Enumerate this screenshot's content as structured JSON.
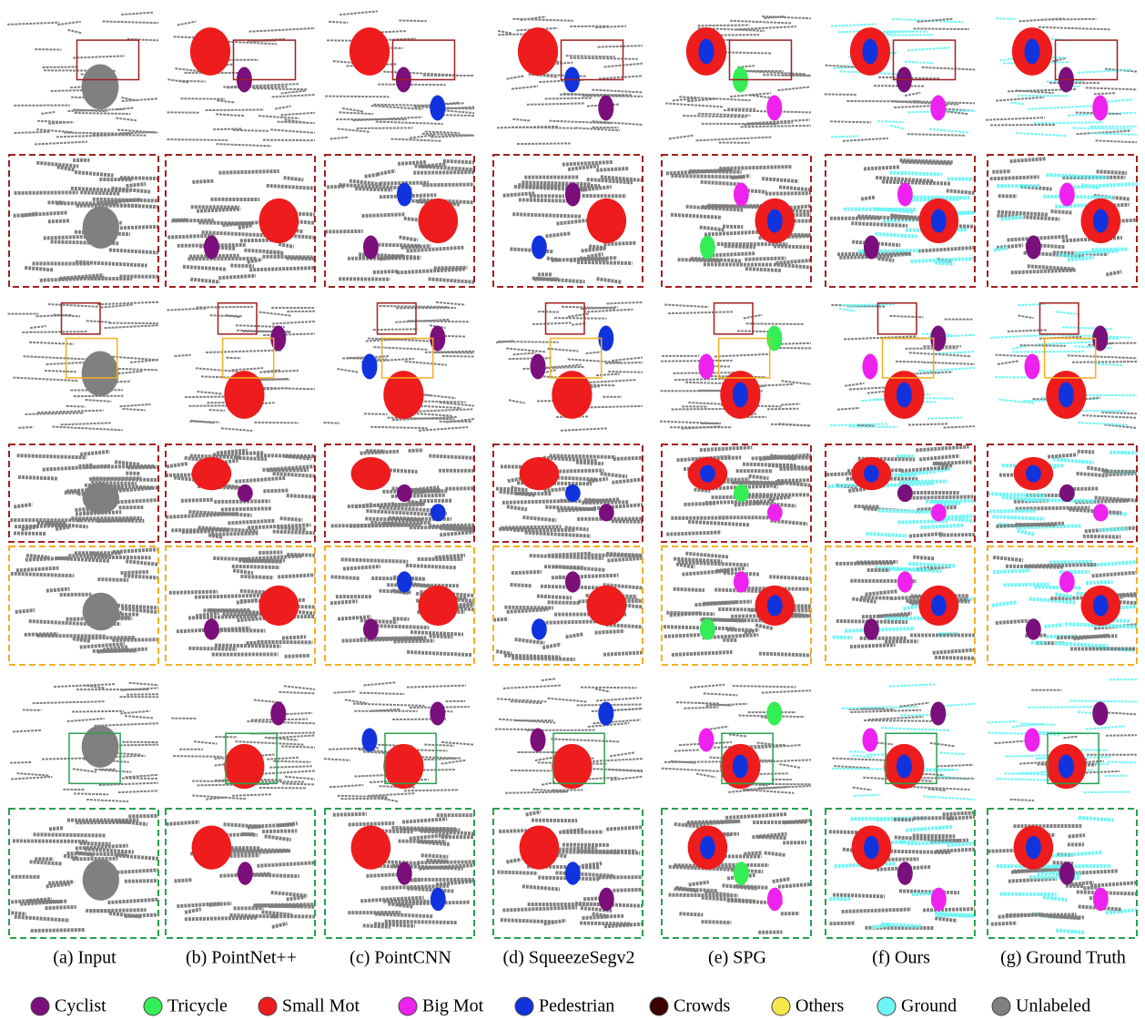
{
  "figure": {
    "captions": [
      "(a) Input",
      "(b) PointNet++",
      "(c) PointCNN",
      "(d) SqueezeSegv2",
      "(e) SPG",
      "(f) Ours",
      "(g) Ground Truth"
    ],
    "legend": [
      {
        "label": "Cyclist",
        "color": "#7b0f7b"
      },
      {
        "label": "Tricycle",
        "color": "#33ee55"
      },
      {
        "label": "Small Mot",
        "color": "#ee1c1c"
      },
      {
        "label": "Big Mot",
        "color": "#ee22ee"
      },
      {
        "label": "Pedestrian",
        "color": "#1133dd"
      },
      {
        "label": "Crowds",
        "color": "#3a0000"
      },
      {
        "label": "Others",
        "color": "#f5e84a"
      },
      {
        "label": "Ground",
        "color": "#6ff5f5"
      },
      {
        "label": "Unlabeled",
        "color": "#808080"
      }
    ]
  }
}
